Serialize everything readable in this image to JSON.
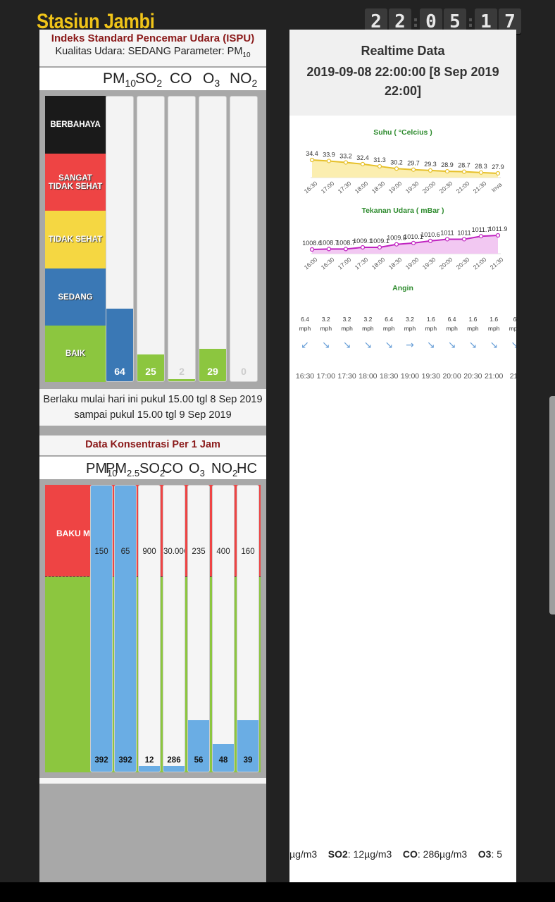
{
  "station": "Stasiun Jambi",
  "clock": {
    "h1": "2",
    "h2": "2",
    "m1": "0",
    "m2": "5",
    "s1": "1",
    "s2": "7"
  },
  "ispu": {
    "title": "Indeks Standard Pencemar Udara (ISPU)",
    "quality_prefix": "Kualitas Udara: SEDANG Parameter: PM",
    "quality_sub": "10",
    "params": [
      {
        "main": "PM",
        "sub": "10"
      },
      {
        "main": "SO",
        "sub": "2"
      },
      {
        "main": "CO",
        "sub": ""
      },
      {
        "main": "O",
        "sub": "3"
      },
      {
        "main": "NO",
        "sub": "2"
      }
    ],
    "levels": [
      "BERBAHAYA",
      "SANGAT TIDAK SEHAT",
      "TIDAK SEHAT",
      "SEDANG",
      "BAIK"
    ],
    "level_colors": [
      "#1a1a1a",
      "#ee4444",
      "#f5d742",
      "#3a78b5",
      "#8cc63f"
    ],
    "values": [
      "64",
      "25",
      "2",
      "29",
      "0"
    ],
    "value_fractions": [
      0.255,
      0.095,
      0.008,
      0.115,
      0
    ],
    "value_colors": [
      "#3a78b5",
      "#8cc63f",
      "#8cc63f",
      "#8cc63f",
      "#8cc63f"
    ],
    "validity": "Berlaku mulai hari ini pukul 15.00 tgl 8 Sep 2019 sampai pukul 15.00 tgl 9 Sep 2019"
  },
  "konsentrasi": {
    "title": "Data Konsentrasi Per 1 Jam",
    "params": [
      {
        "main": "PM",
        "sub": "10"
      },
      {
        "main": "PM",
        "sub": "2.5"
      },
      {
        "main": "SO",
        "sub": "2"
      },
      {
        "main": "CO",
        "sub": ""
      },
      {
        "main": "O",
        "sub": "3"
      },
      {
        "main": "NO",
        "sub": "2"
      },
      {
        "main": "HC",
        "sub": ""
      }
    ],
    "baku_label": "BAKU MUTU",
    "limits": [
      "150",
      "65",
      "900",
      "30.000",
      "235",
      "400",
      "160"
    ],
    "values": [
      "392",
      "392",
      "12",
      "286",
      "56",
      "48",
      "39"
    ],
    "fill_fractions": [
      1.0,
      1.0,
      0.02,
      0.02,
      0.18,
      0.095,
      0.18
    ]
  },
  "realtime": {
    "title": "Realtime Data",
    "timestamp": "2019-09-08 22:00:00 [8 Sep 2019 22:00]",
    "suhu": {
      "title": "Suhu ( °Celcius )",
      "labels": [
        "16:30",
        "17:00",
        "17:30",
        "18:00",
        "18:30",
        "19:00",
        "19:30",
        "20:00",
        "20:30",
        "21:00",
        "21:30",
        "Inva"
      ],
      "values": [
        34.4,
        33.9,
        33.2,
        32.4,
        31.3,
        30.2,
        29.7,
        29.3,
        28.9,
        28.7,
        28.3,
        27.9
      ],
      "value_labels": [
        "34.4",
        "33.9",
        "33.2",
        "32.4",
        "31.3",
        "30.2",
        "29.7",
        "29.3",
        "28.9",
        "28.7",
        "28.3",
        "27.9"
      ]
    },
    "tekanan": {
      "title": "Tekanan Udara ( mBar )",
      "labels": [
        "16:00",
        "16:30",
        "17:00",
        "17:30",
        "18:00",
        "18:30",
        "19:00",
        "19:30",
        "20:00",
        "20:30",
        "21:00",
        "21:30"
      ],
      "values": [
        1008.6,
        1008.7,
        1008.7,
        1009.1,
        1009.1,
        1009.8,
        1010.1,
        1010.6,
        1011,
        1011,
        1011.7,
        1011.9
      ],
      "value_labels": [
        "1008.6",
        "1008.7",
        "1008.7",
        "1009.1",
        "1009.1",
        "1009.8",
        "1010.1",
        "1010.6",
        "1011",
        "1011",
        "1011.7",
        "1011.9"
      ]
    },
    "angin": {
      "title": "Angin",
      "speeds": [
        "6.4",
        "3.2",
        "3.2",
        "3.2",
        "6.4",
        "3.2",
        "1.6",
        "6.4",
        "1.6",
        "1.6",
        "6"
      ],
      "unit": "mph",
      "arrows": [
        "↙",
        "↘",
        "↘",
        "↘",
        "↘",
        "→",
        "↘",
        "↘",
        "↘",
        "↘",
        "↘"
      ],
      "times": [
        "16:30",
        "17:00",
        "17:30",
        "18:00",
        "18:30",
        "19:00",
        "19:30",
        "20:00",
        "20:30",
        "21:00",
        "21:"
      ]
    },
    "ticker": [
      {
        "label": "",
        "value": "µg/m3"
      },
      {
        "label": "SO2",
        "value": ": 12µg/m3"
      },
      {
        "label": "CO",
        "value": ": 286µg/m3"
      },
      {
        "label": "O3",
        "value": ": 5"
      }
    ]
  }
}
